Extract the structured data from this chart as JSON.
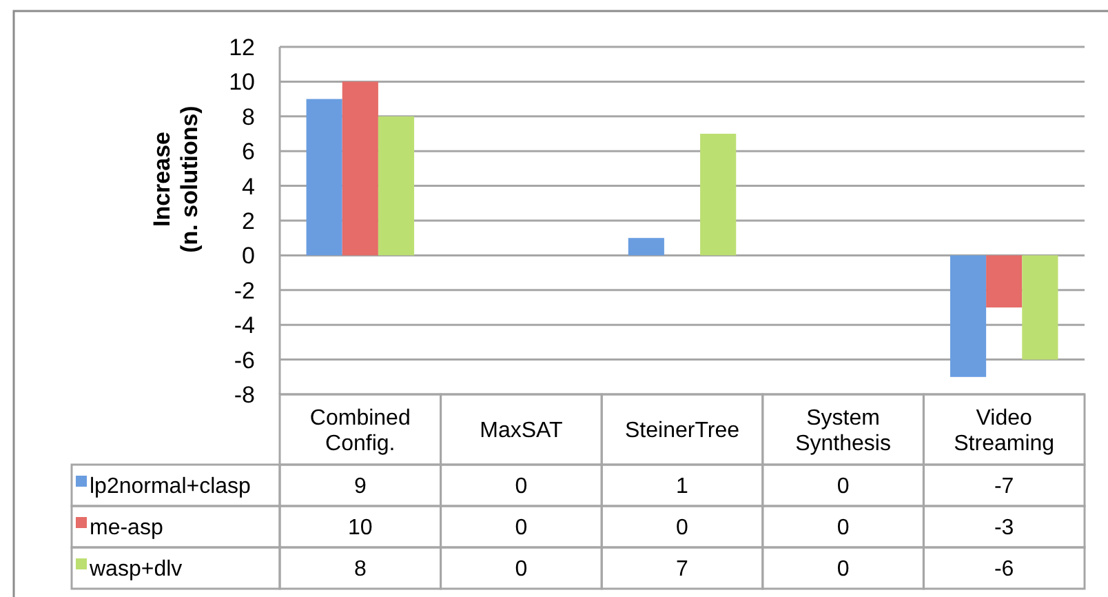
{
  "chart_data": {
    "type": "bar",
    "ylabel": "Increase\n(n. solutions)",
    "categories": [
      "Combined Config.",
      "MaxSAT",
      "SteinerTree",
      "System Synthesis",
      "Video Streaming"
    ],
    "series": [
      {
        "name": "lp2normal+clasp",
        "color": "#6a9de0",
        "values": [
          9,
          0,
          1,
          0,
          -7
        ]
      },
      {
        "name": "me-asp",
        "color": "#e56c68",
        "values": [
          10,
          0,
          0,
          0,
          -3
        ]
      },
      {
        "name": "wasp+dlv",
        "color": "#bcdf72",
        "values": [
          8,
          0,
          7,
          0,
          -6
        ]
      }
    ],
    "ylim": [
      -8,
      12
    ],
    "yticks": [
      -8,
      -6,
      -4,
      -2,
      0,
      2,
      4,
      6,
      8,
      10,
      12
    ],
    "grid": "y",
    "legend": "bottom",
    "data_labels": true
  }
}
